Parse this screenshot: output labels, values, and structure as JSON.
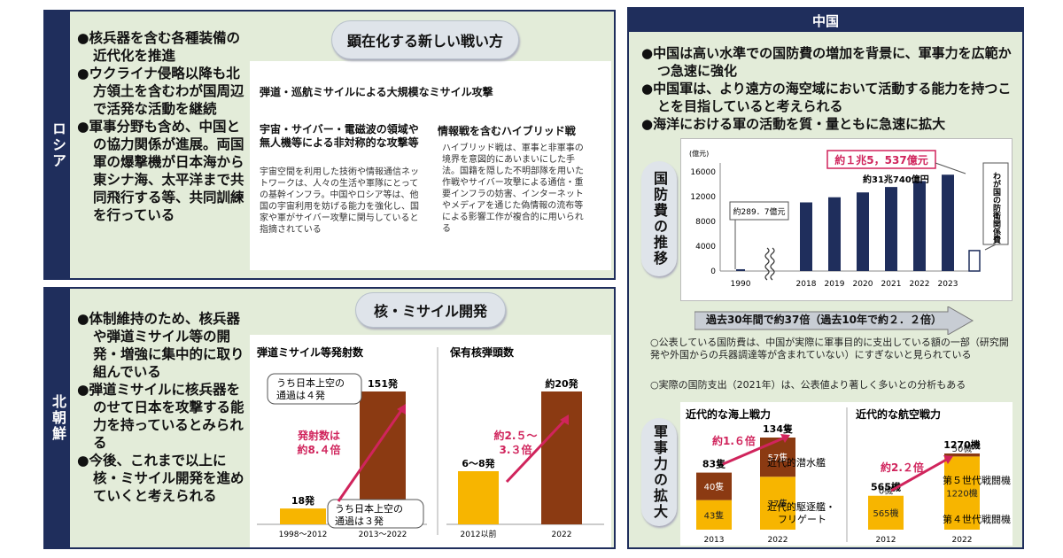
{
  "russia": {
    "label": "ロシア",
    "bullets": [
      "●核兵器を含む各種装備の近代化を推進",
      "●ウクライナ侵略以降も北方領土を含むわが国周辺で活発な活動を継続",
      "●軍事分野も含め、中国との協力関係が進展。両国軍の爆撃機が日本海から東シナ海、太平洋まで共同飛行する等、共同訓練を行っている"
    ],
    "pill": "顕在化する新しい戦い方",
    "item1": "弾道・巡航ミサイルによる大規模なミサイル攻撃",
    "item2_title": "宇宙・サイバー・電磁波の領域や無人機等による非対称的な攻撃等",
    "item2_body": "宇宙空間を利用した技術や情報通信ネットワークは、人々の生活や軍隊にとっての基幹インフラ。中国やロシア等は、他国の宇宙利用を妨げる能力を強化し、国家や軍がサイバー攻撃に関与していると指摘されている",
    "item3_title": "情報戦を含むハイブリッド戦",
    "item3_body": "ハイブリッド戦は、軍事と非軍事の境界を意図的にあいまいにした手法。国籍を隠した不明部隊を用いた作戦やサイバー攻撃による通信・重要インフラの妨害、インターネットやメディアを通じた偽情報の流布等による影響工作が複合的に用いられる"
  },
  "north_korea": {
    "label": "北朝鮮",
    "bullets": [
      "●体制維持のため、核兵器や弾道ミサイル等の開発・増強に集中的に取り組んでいる",
      "●弾道ミサイルに核兵器をのせて日本を攻撃する能力を持っているとみられる",
      "●今後、これまで以上に核・ミサイル開発を進めていくと考えられる"
    ],
    "pill": "核・ミサイル開発",
    "missile_title": "弾道ミサイル等発射数",
    "warhead_title": "保有核弾頭数",
    "callout_top": "うち日本上空の通過は４発",
    "callout_bottom": "うち日本上空の通過は３発",
    "missile_growth": "発射数は約8.４倍",
    "warhead_growth": "約2.５〜3.３倍"
  },
  "china": {
    "header": "中国",
    "bullets": [
      "●中国は高い水準での国防費の増加を背景に、軍事力を広範かつ急速に強化",
      "●中国軍は、より遠方の海空域において活動する能力を持つことを目指していると考えられる",
      "●海洋における軍の活動を質・量ともに急速に拡大"
    ],
    "budget_label": "国防費の推移",
    "force_label": "軍事力の拡大",
    "unit": "(億元)",
    "callout_2023": "約１兆5，537億元",
    "callout_japan": "約31兆740億円",
    "callout_1990": "約289．7億元",
    "japan_label": "わが国の防衛関係費",
    "arrow_text": "過去30年間で約37倍（過去10年で約２．２倍）",
    "note1": "○公表している国防費は、中国が実際に軍事目的に支出している額の一部（研究開発や外国からの兵器調達等が含まれていない）にすぎないと見られている",
    "note2": "○実際の国防支出（2021年）は、公表値より著しく多いとの分析もある",
    "naval_title": "近代的な海上戦力",
    "air_title": "近代的な航空戦力",
    "naval_growth": "約1.６倍",
    "air_growth": "約2.２倍",
    "naval_leg1": "近代的潜水艦",
    "naval_leg2": "近代的駆逐艦・フリゲート",
    "air_leg1": "第５世代戦闘機",
    "air_leg2": "第４世代戦闘機"
  },
  "colors": {
    "navy": "#1f2e5c",
    "yellow": "#f7b500",
    "brown": "#8b3a12",
    "pink": "#d0245c",
    "panel": "#e3ecd9"
  },
  "chart_data": [
    {
      "type": "bar",
      "title": "弾道ミサイル等発射数",
      "categories": [
        "1998〜2012",
        "2013〜2022"
      ],
      "values": [
        18,
        151
      ],
      "value_labels": [
        "18発",
        "151発"
      ]
    },
    {
      "type": "bar",
      "title": "保有核弾頭数",
      "categories": [
        "2012以前",
        "2022"
      ],
      "values": [
        8,
        20
      ],
      "value_labels": [
        "6〜8発",
        "約20発"
      ]
    },
    {
      "type": "bar",
      "unit": "(億元)",
      "categories": [
        "1990",
        "2018",
        "2019",
        "2020",
        "2021",
        "2022",
        "2023"
      ],
      "values": [
        289.7,
        11070,
        11899,
        12680,
        13553,
        14505,
        15537
      ],
      "japan_value": 3300,
      "yticks": [
        0,
        4000,
        8000,
        12000,
        16000
      ],
      "ylim": [
        0,
        16000
      ]
    },
    {
      "type": "bar",
      "title": "近代的な海上戦力",
      "categories": [
        "2013",
        "2022"
      ],
      "series": [
        {
          "name": "近代的駆逐艦・フリゲート",
          "values": [
            43,
            77
          ],
          "labels": [
            "43隻",
            "77隻"
          ]
        },
        {
          "name": "近代的潜水艦",
          "values": [
            40,
            57
          ],
          "labels": [
            "40隻",
            "57隻"
          ]
        }
      ],
      "totals": [
        "83隻",
        "134隻"
      ]
    },
    {
      "type": "bar",
      "title": "近代的な航空戦力",
      "categories": [
        "2012",
        "2022"
      ],
      "series": [
        {
          "name": "第４世代戦闘機",
          "values": [
            565,
            1220
          ],
          "labels": [
            "565機",
            "1220機"
          ]
        },
        {
          "name": "第５世代戦闘機",
          "values": [
            0,
            50
          ],
          "labels": [
            "0機",
            "50機"
          ]
        }
      ],
      "totals": [
        "565機",
        "1270機"
      ]
    }
  ]
}
